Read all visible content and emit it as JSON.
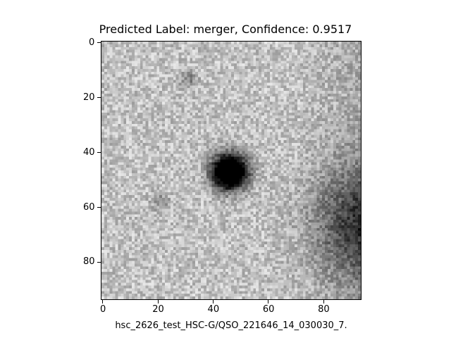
{
  "title": "Predicted Label: merger, Confidence: 0.9517",
  "xlabel": "hsc_2626_test_HSC-G/QSO_221646_14_030030_7.",
  "image": {
    "description_icon": "grayscale-astronomy-cutout-icon",
    "pixel_extent": [
      0,
      93
    ],
    "x_ticks": [
      "0",
      "20",
      "40",
      "60",
      "80"
    ],
    "y_ticks": [
      "0",
      "20",
      "40",
      "60",
      "80"
    ],
    "colormap": "gray_r"
  }
}
